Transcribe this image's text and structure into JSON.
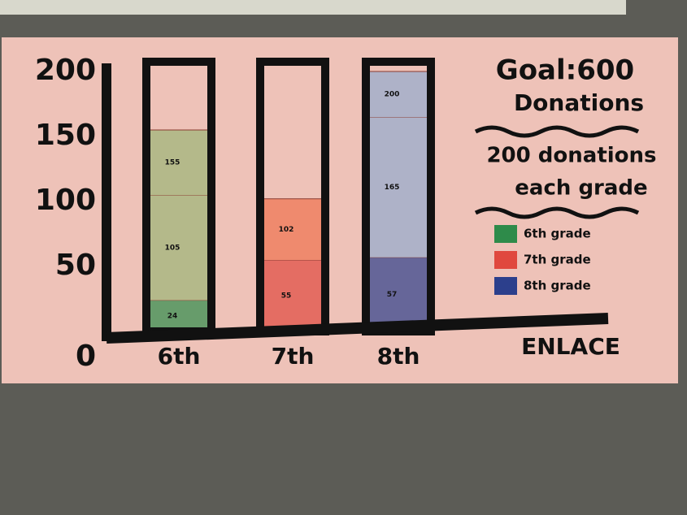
{
  "chart_data": {
    "type": "bar",
    "categories": [
      "6th",
      "7th",
      "8th"
    ],
    "levels": [
      [
        24,
        105,
        155
      ],
      [
        55,
        102
      ],
      [
        57,
        165,
        200
      ]
    ],
    "colors": [
      "#b4b98a",
      "#ef8a6e",
      "#aeb2c8"
    ],
    "ylim": [
      0,
      200
    ],
    "yticks": [
      0,
      50,
      100,
      150,
      200
    ],
    "annotations": [
      "Goal:600",
      "Donations",
      "200 donations",
      "each grade"
    ],
    "x_label": "ENLACE",
    "legend": [
      {
        "name": "6th grade",
        "color": "#2e8b4a"
      },
      {
        "name": "7th grade",
        "color": "#e0483e"
      },
      {
        "name": "8th grade",
        "color": "#2c3f8c"
      }
    ]
  }
}
